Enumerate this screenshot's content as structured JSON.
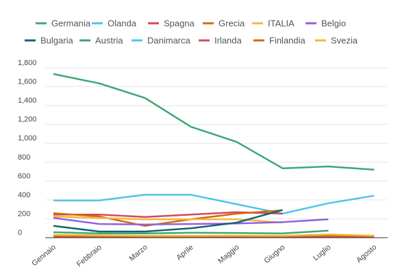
{
  "chart_data": {
    "type": "line",
    "title": "",
    "xlabel": "",
    "ylabel": "",
    "categories": [
      "Gennaio",
      "Febbraio",
      "Marzo",
      "Aprile",
      "Maggio",
      "Giugno",
      "Luglio",
      "Agosto"
    ],
    "ylim": [
      0,
      1800
    ],
    "yticks": [
      0,
      200,
      400,
      600,
      800,
      1000,
      1200,
      1400,
      1600,
      1800
    ],
    "ytick_labels": [
      "0",
      "200",
      "400",
      "600",
      "800",
      "1,000",
      "1,200",
      "1,400",
      "1,600",
      "1,800"
    ],
    "grid": true,
    "legend_placement": "top",
    "series": [
      {
        "name": "Germania",
        "color": "#3aa874",
        "values": [
          1735,
          1635,
          1480,
          1175,
          1015,
          735,
          755,
          720
        ]
      },
      {
        "name": "Olanda",
        "color": "#4fc3e8",
        "values": [
          395,
          395,
          455,
          455,
          355,
          255,
          365,
          445
        ]
      },
      {
        "name": "Spagna",
        "color": "#d04a5e",
        "values": [
          245,
          245,
          220,
          245,
          270,
          255,
          null,
          null
        ]
      },
      {
        "name": "Grecia",
        "color": "#d4690c",
        "values": [
          260,
          225,
          125,
          195,
          255,
          290,
          null,
          null
        ]
      },
      {
        "name": "ITALIA",
        "color": "#f5b53c",
        "values": [
          225,
          210,
          195,
          195,
          195,
          160,
          null,
          null
        ]
      },
      {
        "name": "Belgio",
        "color": "#9360de",
        "values": [
          210,
          145,
          140,
          145,
          150,
          165,
          195,
          null
        ]
      },
      {
        "name": "Bulgaria",
        "color": "#0e6670",
        "values": [
          125,
          65,
          65,
          100,
          160,
          295,
          null,
          null
        ]
      },
      {
        "name": "Austria",
        "color": "#3aa874",
        "values": [
          58,
          45,
          45,
          52,
          50,
          45,
          75,
          null
        ]
      },
      {
        "name": "Danimarca",
        "color": "#4fc3e8",
        "values": [
          5,
          5,
          5,
          5,
          5,
          5,
          5,
          5
        ]
      },
      {
        "name": "Irlanda",
        "color": "#d04a5e",
        "values": [
          10,
          10,
          10,
          10,
          10,
          10,
          10,
          10
        ]
      },
      {
        "name": "Finlandia",
        "color": "#d4690c",
        "values": [
          20,
          15,
          12,
          12,
          15,
          15,
          20,
          15
        ]
      },
      {
        "name": "Svezia",
        "color": "#f5b53c",
        "values": [
          30,
          25,
          20,
          20,
          22,
          20,
          35,
          22
        ]
      }
    ]
  }
}
